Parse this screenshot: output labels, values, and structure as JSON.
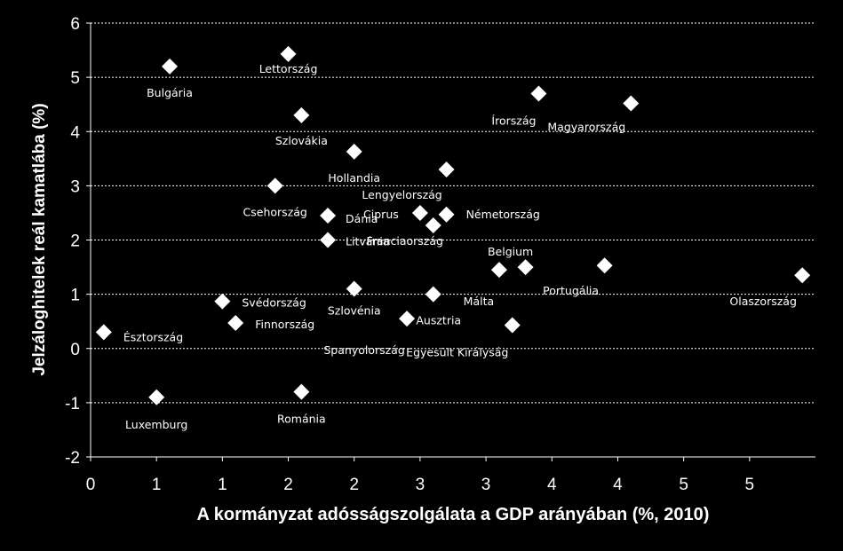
{
  "chart_data": {
    "type": "scatter",
    "title": "",
    "xlabel": "A kormányzat adósságszolgálata a GDP arányában (%, 2010)",
    "ylabel": "Jelzáloghitelek reál kamatlába (%)",
    "xlim": [
      0,
      5.5
    ],
    "ylim": [
      -2,
      6
    ],
    "x_tick_values": [
      0,
      0.5,
      1,
      1.5,
      2,
      2.5,
      3,
      3.5,
      4,
      4.5,
      5
    ],
    "x_tick_labels": [
      "0",
      "1",
      "1",
      "2",
      "2",
      "3",
      "3",
      "4",
      "4",
      "5",
      "5"
    ],
    "y_ticks": [
      -2,
      -1,
      0,
      1,
      2,
      3,
      4,
      5,
      6
    ],
    "grid": "horizontal-dotted",
    "marker": "diamond",
    "marker_color": "#ffffff",
    "points": [
      {
        "label": "Bulgária",
        "x": 0.6,
        "y": 5.2
      },
      {
        "label": "Lettország",
        "x": 1.5,
        "y": 5.43
      },
      {
        "label": "Szlovákia",
        "x": 1.6,
        "y": 4.3
      },
      {
        "label": "Hollandia",
        "x": 2.0,
        "y": 3.63
      },
      {
        "label": "Csehország",
        "x": 1.4,
        "y": 3.0
      },
      {
        "label": "Dánia",
        "x": 1.8,
        "y": 2.45
      },
      {
        "label": "Litvánia",
        "x": 1.8,
        "y": 2.0
      },
      {
        "label": "Svédország",
        "x": 1.0,
        "y": 0.87
      },
      {
        "label": "Finnország",
        "x": 1.1,
        "y": 0.47
      },
      {
        "label": "Észtország",
        "x": 0.1,
        "y": 0.3
      },
      {
        "label": "Luxemburg",
        "x": 0.5,
        "y": -0.9
      },
      {
        "label": "Románia",
        "x": 1.6,
        "y": -0.8
      },
      {
        "label": "Szlovénia",
        "x": 2.0,
        "y": 1.1
      },
      {
        "label": "Spanyolország",
        "x": 2.4,
        "y": 0.55
      },
      {
        "label": "Ausztria",
        "x": 2.6,
        "y": 1.0
      },
      {
        "label": "Ciprus",
        "x": 2.5,
        "y": 2.5
      },
      {
        "label": "Franciaország",
        "x": 2.6,
        "y": 2.27
      },
      {
        "label": "Lengyelország",
        "x": 2.7,
        "y": 3.3
      },
      {
        "label": "Németország",
        "x": 2.7,
        "y": 2.47
      },
      {
        "label": "Írország",
        "x": 3.4,
        "y": 4.7
      },
      {
        "label": "Magyarország",
        "x": 4.1,
        "y": 4.52
      },
      {
        "label": "Belgium",
        "x": 3.3,
        "y": 1.5
      },
      {
        "label": "Málta",
        "x": 3.1,
        "y": 1.45
      },
      {
        "label": "Egyesült Királyság",
        "x": 3.2,
        "y": 0.43
      },
      {
        "label": "Portugália",
        "x": 3.9,
        "y": 1.53
      },
      {
        "label": "Olaszország",
        "x": 5.4,
        "y": 1.35
      }
    ]
  }
}
